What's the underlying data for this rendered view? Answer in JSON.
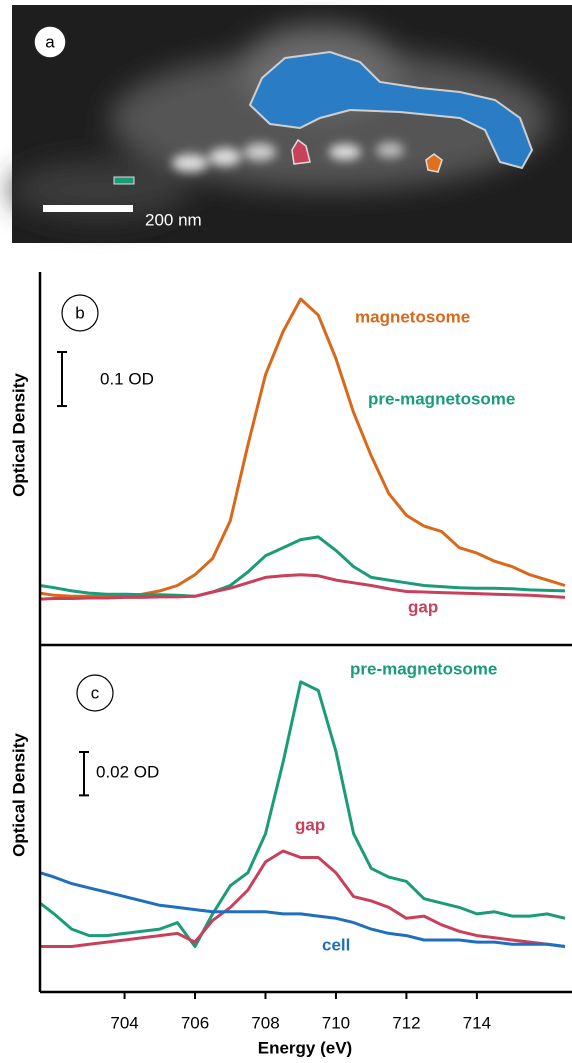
{
  "image_panel": {
    "label": "a",
    "scale_bar": "200 nm"
  },
  "chart_data": [
    {
      "type": "line",
      "label": "b",
      "ylabel": "Optical Density",
      "xlim": [
        701.6,
        716.7
      ],
      "ylim": [
        -0.09,
        0.6
      ],
      "scale_bar": {
        "value": 0.1,
        "label": "0.1 OD"
      },
      "x": [
        701.6,
        702,
        702.5,
        703,
        703.5,
        704,
        704.5,
        705,
        705.5,
        706,
        706.5,
        707,
        707.5,
        708,
        708.5,
        709,
        709.5,
        710,
        710.5,
        711,
        711.5,
        712,
        712.5,
        713,
        713.5,
        714,
        714.5,
        715,
        715.5,
        716,
        716.5
      ],
      "series": [
        {
          "name": "magnetosome",
          "color": "#d9681a",
          "values": [
            0.006,
            0.002,
            0,
            0,
            0,
            0,
            0.004,
            0.01,
            0.02,
            0.04,
            0.07,
            0.14,
            0.28,
            0.41,
            0.49,
            0.55,
            0.52,
            0.44,
            0.34,
            0.26,
            0.19,
            0.15,
            0.13,
            0.12,
            0.09,
            0.08,
            0.065,
            0.055,
            0.04,
            0.03,
            0.02
          ]
        },
        {
          "name": "pre-magnetosome",
          "color": "#1a9c78",
          "values": [
            0.02,
            0.016,
            0.01,
            0.006,
            0.004,
            0.004,
            0.003,
            0.003,
            0.002,
            0,
            0.008,
            0.02,
            0.045,
            0.075,
            0.09,
            0.105,
            0.11,
            0.085,
            0.055,
            0.035,
            0.03,
            0.025,
            0.02,
            0.018,
            0.016,
            0.015,
            0.015,
            0.014,
            0.012,
            0.011,
            0.01
          ]
        },
        {
          "name": "gap",
          "color": "#c8405a",
          "values": [
            -0.005,
            -0.004,
            -0.004,
            -0.003,
            -0.003,
            -0.002,
            -0.002,
            -0.001,
            -0.001,
            0,
            0.008,
            0.015,
            0.025,
            0.035,
            0.038,
            0.04,
            0.038,
            0.03,
            0.025,
            0.02,
            0.014,
            0.009,
            0.008,
            0.007,
            0.006,
            0.005,
            0.004,
            0.003,
            0.002,
            0,
            -0.002
          ]
        }
      ]
    },
    {
      "type": "line",
      "label": "c",
      "ylabel": "Optical Density",
      "xlabel": "Energy (eV)",
      "xlim": [
        701.6,
        716.7
      ],
      "ylim": [
        -0.02,
        0.14
      ],
      "xticks": [
        704,
        706,
        708,
        710,
        712,
        714
      ],
      "scale_bar": {
        "value": 0.02,
        "label": "0.02 OD"
      },
      "x": [
        701.6,
        702,
        702.5,
        703,
        703.5,
        704,
        704.5,
        705,
        705.5,
        706,
        706.5,
        707,
        707.5,
        708,
        708.5,
        709,
        709.5,
        710,
        710.5,
        711,
        711.5,
        712,
        712.5,
        713,
        713.5,
        714,
        714.5,
        715,
        715.5,
        716,
        716.5
      ],
      "series": [
        {
          "name": "pre-magnetosome",
          "color": "#1a9c78",
          "values": [
            0.021,
            0.016,
            0.009,
            0.006,
            0.006,
            0.007,
            0.008,
            0.009,
            0.012,
            0.001,
            0.016,
            0.029,
            0.035,
            0.053,
            0.086,
            0.123,
            0.119,
            0.091,
            0.053,
            0.037,
            0.033,
            0.031,
            0.023,
            0.021,
            0.019,
            0.016,
            0.017,
            0.015,
            0.015,
            0.016,
            0.014
          ]
        },
        {
          "name": "gap",
          "color": "#c8405a",
          "values": [
            0.001,
            0.001,
            0.001,
            0.002,
            0.003,
            0.004,
            0.005,
            0.006,
            0.007,
            0.003,
            0.013,
            0.019,
            0.027,
            0.04,
            0.045,
            0.042,
            0.042,
            0.035,
            0.024,
            0.022,
            0.019,
            0.014,
            0.015,
            0.011,
            0.008,
            0.006,
            0.005,
            0.004,
            0.003,
            0.002,
            0.001
          ]
        },
        {
          "name": "cell",
          "color": "#1f6fbf",
          "values": [
            0.035,
            0.033,
            0.03,
            0.028,
            0.026,
            0.024,
            0.022,
            0.02,
            0.019,
            0.018,
            0.017,
            0.017,
            0.017,
            0.017,
            0.016,
            0.016,
            0.015,
            0.014,
            0.012,
            0.009,
            0.007,
            0.006,
            0.004,
            0.004,
            0.004,
            0.003,
            0.003,
            0.002,
            0.002,
            0.002,
            0.001
          ]
        }
      ]
    }
  ]
}
